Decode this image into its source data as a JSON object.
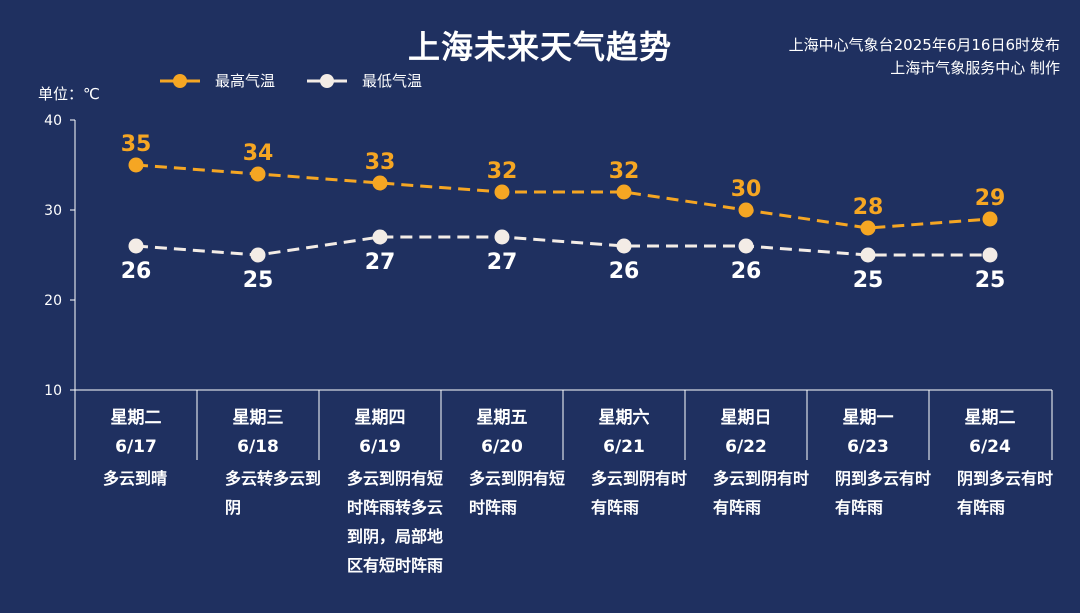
{
  "title": "上海未来天气趋势",
  "issuer": {
    "line1": "上海中心气象台2025年6月16日6时发布",
    "line2": "上海市气象服务中心 制作"
  },
  "colors": {
    "background": "#1f3060",
    "high": "#f5a623",
    "low": "#f3ece6",
    "text": "#ffffff"
  },
  "chart_data": {
    "type": "line",
    "ylabel": "单位：℃",
    "ylim": [
      10,
      40
    ],
    "yticks": [
      10,
      20,
      30,
      40
    ],
    "legend_position": "top-left",
    "categories": [
      {
        "weekday": "星期二",
        "date": "6/17",
        "condition": "多云到晴"
      },
      {
        "weekday": "星期三",
        "date": "6/18",
        "condition": "多云转多云到阴"
      },
      {
        "weekday": "星期四",
        "date": "6/19",
        "condition": "多云到阴有短时阵雨转多云到阴，局部地区有短时阵雨"
      },
      {
        "weekday": "星期五",
        "date": "6/20",
        "condition": "多云到阴有短时阵雨"
      },
      {
        "weekday": "星期六",
        "date": "6/21",
        "condition": "多云到阴有时有阵雨"
      },
      {
        "weekday": "星期日",
        "date": "6/22",
        "condition": "多云到阴有时有阵雨"
      },
      {
        "weekday": "星期一",
        "date": "6/23",
        "condition": "阴到多云有时有阵雨"
      },
      {
        "weekday": "星期二",
        "date": "6/24",
        "condition": "阴到多云有时有阵雨"
      }
    ],
    "series": [
      {
        "name": "最高气温",
        "color": "#f5a623",
        "values": [
          35,
          34,
          33,
          32,
          32,
          30,
          28,
          29
        ]
      },
      {
        "name": "最低气温",
        "color": "#f3ece6",
        "values": [
          26,
          25,
          27,
          27,
          26,
          26,
          25,
          25
        ]
      }
    ]
  }
}
